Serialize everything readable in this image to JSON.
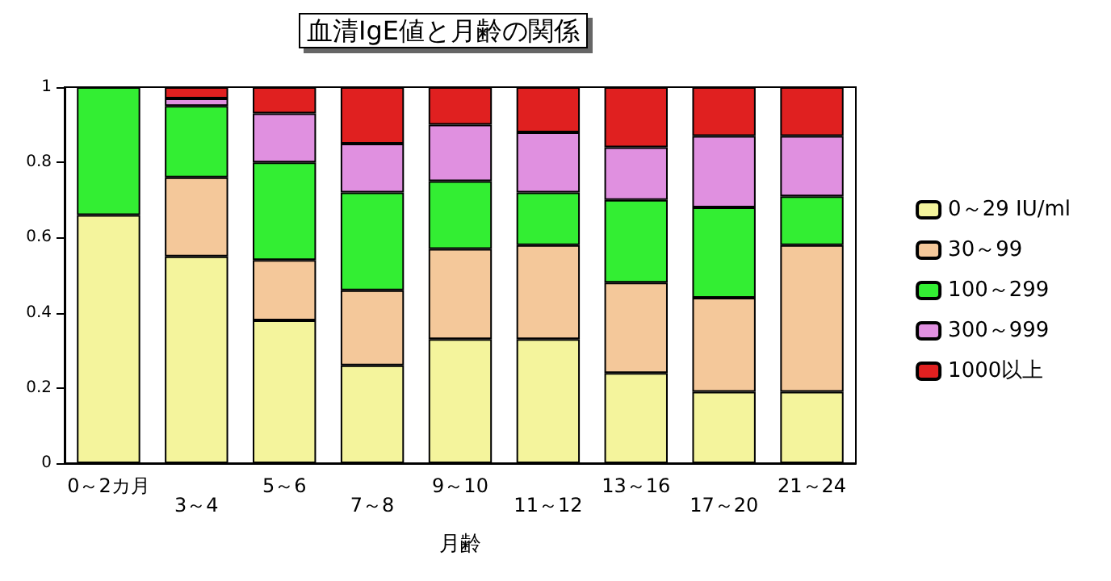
{
  "chart_data": {
    "type": "bar",
    "title": "血清IgE値と月齢の関係",
    "xlabel": "月齢",
    "stacked": true,
    "legend": "right",
    "grid": false,
    "categories": [
      "0～2カ月",
      "3～4",
      "5～6",
      "7～8",
      "9～10",
      "11～12",
      "13～16",
      "17～20",
      "21～24"
    ],
    "ylim": [
      0,
      1
    ],
    "yticks": [
      0,
      0.2,
      0.4,
      0.6,
      0.8,
      1
    ],
    "series": [
      {
        "name": "0～29 IU/ml",
        "color": "#f4f49c",
        "values": [
          0.66,
          0.55,
          0.38,
          0.26,
          0.33,
          0.33,
          0.24,
          0.19,
          0.19
        ]
      },
      {
        "name": "30～99",
        "color": "#f4c89a",
        "values": [
          0,
          0.21,
          0.16,
          0.2,
          0.24,
          0.25,
          0.24,
          0.25,
          0.39
        ]
      },
      {
        "name": "100～299",
        "color": "#33ee33",
        "values": [
          0.34,
          0.19,
          0.26,
          0.26,
          0.18,
          0.14,
          0.22,
          0.24,
          0.13
        ]
      },
      {
        "name": "300～999",
        "color": "#e090e0",
        "values": [
          0,
          0.02,
          0.13,
          0.13,
          0.15,
          0.16,
          0.14,
          0.19,
          0.16
        ]
      },
      {
        "name": "1000以上",
        "color": "#e02020",
        "values": [
          0,
          0.03,
          0.07,
          0.15,
          0.1,
          0.12,
          0.16,
          0.13,
          0.13
        ]
      }
    ]
  }
}
